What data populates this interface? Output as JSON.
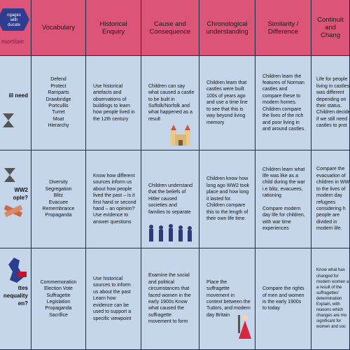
{
  "logo": {
    "line1": "ngages",
    "line2": "with",
    "line3": "ducate",
    "name": "nsortium"
  },
  "header": {
    "columns": [
      "Vocabulary",
      "Historical Enquiry",
      "Cause and Consequence",
      "Chronological understanding",
      "Similarity / Difference",
      [
        "Continuit",
        "and Chang"
      ]
    ]
  },
  "rows": [
    {
      "label": [
        "ill need"
      ],
      "cells": [
        [
          "Defend",
          "Protect",
          "Ramparts",
          "Drawbridge",
          "Portcullis",
          "Turret",
          "Moat",
          "Hierarchy"
        ],
        "Use historical artefacts and observations of buildings to learn how people lived in the 12th century",
        "Children can say what caused a castle to be built in Suffolk/Norfolk and what happened as a result",
        "Children learn that castles were built 100s of years ago and use a time line to see that this is way beyond living memory",
        "Children learn the features of Norman castles and compare these to modern homes. Children compare the lives of the rich and poor living in and around castles.",
        [
          "Life for people",
          "living in castles",
          "was different",
          "depending on",
          "their status.",
          "Children decide",
          "if we still need",
          "castles to prot"
        ]
      ]
    },
    {
      "label": [
        "WW2",
        "ople?"
      ],
      "cells": [
        [
          "Diversity",
          "Segregation",
          "Blitz",
          "Evacuee",
          "Remembrance",
          "Propaganda"
        ],
        "Know how different sources inform us about how people lived the past – is it first hand or second hand – an opinion? Use evidence to answer questions",
        "Children understand that the beliefs of Hitler caused societies and families to separate",
        "Children know how long ago WW2 took place and how long it lasted for. Children compare this to the length of their own life time.",
        [
          "Children learn what life was like as a child during the war i.e blitz, evacuees, rationing",
          "Compare modern day life for children, with war time experiences"
        ],
        [
          "Compare the",
          "evacuation of",
          "children in WW",
          "to the lives of",
          "modern day",
          "refugees",
          "considering h",
          "people are",
          "divided in",
          "modern life."
        ]
      ]
    },
    {
      "label": [
        "ttes",
        "nequality",
        "en?"
      ],
      "cells": [
        [
          "Commemoration",
          "Election Vote",
          "Suffragette",
          "Legislation",
          "Propaganda",
          "Sacrifice"
        ],
        "Use historical sources to inform us about the past Learn how evidence can be used to support a specific viewpoint",
        "Examine the social and political circumstances that faced women in the early 1900s Know what caused the suffragette movement to form",
        "Place the suffragette movement in context between the Tudors, and modern day Britain",
        "Compare the rights of men and women in the early 1900s to today",
        [
          "Know what has",
          "changed for",
          "modern women a",
          "a result of the",
          "suffragettes'",
          "determination",
          "Explain, with",
          "reasons which",
          "changes are mo",
          "significant for",
          "women and soc"
        ]
      ]
    }
  ]
}
